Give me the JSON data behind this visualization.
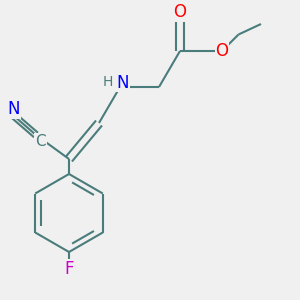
{
  "background_color": "#f0f0f0",
  "bond_color": "#4a7c7c",
  "bond_width": 1.5,
  "atom_colors": {
    "N": "#0000ff",
    "O": "#ff0000",
    "F": "#cc00cc",
    "C_cyan": "#4a7c7c",
    "H": "#4a7c7c"
  },
  "font_size": 10,
  "figsize": [
    3.0,
    3.0
  ],
  "dpi": 100,
  "xlim": [
    -0.5,
    9.5
  ],
  "ylim": [
    -0.5,
    9.5
  ]
}
